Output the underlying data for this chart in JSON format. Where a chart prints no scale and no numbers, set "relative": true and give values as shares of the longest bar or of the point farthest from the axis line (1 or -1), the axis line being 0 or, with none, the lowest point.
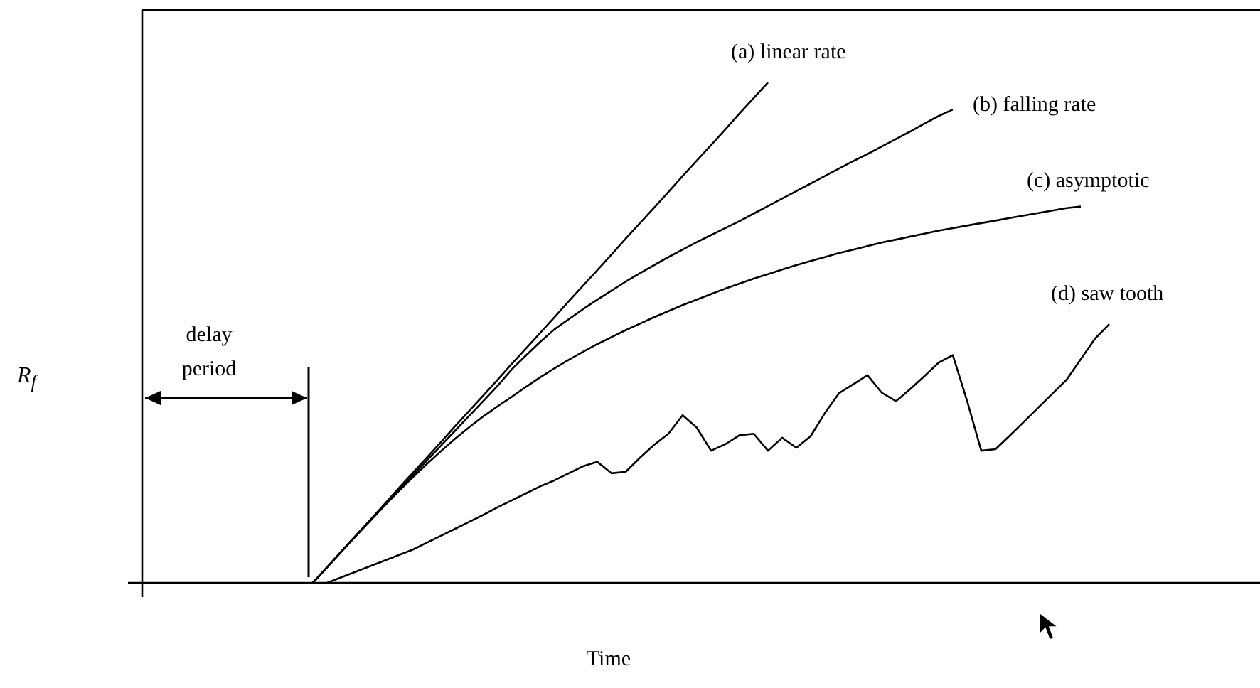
{
  "chart_data": {
    "type": "line",
    "relative": true,
    "xlabel": "Time",
    "ylabel": "R$_{f}$",
    "legend": false,
    "marker": "none",
    "line_style": "solid",
    "annotations": [
      "delay period"
    ],
    "categories": [
      null,
      null,
      null,
      null,
      null,
      null,
      null,
      null,
      null,
      null,
      null,
      null,
      null,
      null,
      null,
      null,
      null,
      null,
      null,
      null,
      null,
      null,
      null,
      null,
      null,
      null,
      null,
      null,
      null,
      null,
      null,
      null,
      null,
      null,
      null,
      null,
      null,
      null,
      null,
      null,
      null,
      null,
      null,
      null,
      null,
      null,
      null,
      null,
      null,
      null,
      null,
      null,
      null,
      null,
      null,
      null,
      null,
      null,
      null,
      null,
      null,
      null,
      null,
      null,
      null,
      null,
      null,
      null,
      null,
      null,
      null,
      null,
      null,
      null,
      null,
      null,
      null,
      null,
      null
    ],
    "series": [
      {
        "name": "(a) linear rate",
        "color": "#000000",
        "values": [
          null,
          null,
          null,
          null,
          null,
          null,
          null,
          null,
          null,
          null,
          null,
          null,
          0,
          0.031,
          0.063,
          0.094,
          0.125,
          0.156,
          0.188,
          0.219,
          0.25,
          0.281,
          0.313,
          0.344,
          0.375,
          0.406,
          0.438,
          0.469,
          0.5,
          0.531,
          0.563,
          0.594,
          0.625,
          0.656,
          0.688,
          0.719,
          0.75,
          0.781,
          0.813,
          0.844,
          0.875,
          0.906,
          0.938,
          0.969,
          1,
          null,
          null,
          null,
          null,
          null,
          null,
          null,
          null,
          null,
          null,
          null,
          null,
          null,
          null,
          null,
          null,
          null,
          null,
          null,
          null,
          null,
          null,
          null,
          null,
          null,
          null,
          null,
          null,
          null,
          null,
          null,
          null,
          null,
          null
        ]
      },
      {
        "name": "(b) falling rate",
        "color": "#000000",
        "values": [
          null,
          null,
          null,
          null,
          null,
          null,
          null,
          null,
          null,
          null,
          null,
          null,
          0,
          0.031,
          0.062,
          0.093,
          0.123,
          0.154,
          0.184,
          0.214,
          0.244,
          0.274,
          0.304,
          0.334,
          0.364,
          0.394,
          0.427,
          0.455,
          0.482,
          0.507,
          0.527,
          0.547,
          0.566,
          0.584,
          0.602,
          0.619,
          0.635,
          0.651,
          0.666,
          0.681,
          0.695,
          0.709,
          0.723,
          0.738,
          0.753,
          0.768,
          0.783,
          0.798,
          0.813,
          0.828,
          0.843,
          0.857,
          0.872,
          0.887,
          0.902,
          0.918,
          0.933,
          0.946,
          null,
          null,
          null,
          null,
          null,
          null,
          null,
          null,
          null,
          null,
          null,
          null,
          null,
          null,
          null,
          null,
          null,
          null,
          null,
          null,
          null
        ]
      },
      {
        "name": "(c) asymptotic",
        "color": "#000000",
        "values": [
          null,
          null,
          null,
          null,
          null,
          null,
          null,
          null,
          null,
          null,
          null,
          null,
          0,
          0.031,
          0.062,
          0.093,
          0.123,
          0.153,
          0.182,
          0.21,
          0.237,
          0.263,
          0.288,
          0.311,
          0.333,
          0.353,
          0.372,
          0.392,
          0.411,
          0.429,
          0.446,
          0.462,
          0.477,
          0.491,
          0.505,
          0.518,
          0.531,
          0.543,
          0.555,
          0.566,
          0.577,
          0.588,
          0.598,
          0.608,
          0.617,
          0.626,
          0.635,
          0.643,
          0.651,
          0.659,
          0.666,
          0.673,
          0.68,
          0.686,
          0.692,
          0.698,
          0.704,
          0.709,
          0.714,
          0.719,
          0.724,
          0.729,
          0.734,
          0.739,
          0.744,
          0.749,
          0.752,
          null,
          null,
          null,
          null,
          null,
          null,
          null,
          null,
          null,
          null,
          null,
          null
        ]
      },
      {
        "name": "(d) saw tooth",
        "color": "#000000",
        "values": [
          null,
          null,
          null,
          null,
          null,
          null,
          null,
          null,
          null,
          null,
          null,
          null,
          null,
          0,
          0.011,
          0.022,
          0.033,
          0.044,
          0.055,
          0.066,
          0.08,
          0.094,
          0.108,
          0.122,
          0.136,
          0.151,
          0.165,
          0.179,
          0.193,
          0.205,
          0.219,
          0.233,
          0.242,
          0.219,
          0.222,
          0.25,
          0.276,
          0.298,
          0.335,
          0.31,
          0.264,
          0.277,
          0.295,
          0.298,
          0.264,
          0.29,
          0.27,
          0.293,
          0.339,
          0.379,
          0.397,
          0.415,
          0.38,
          0.363,
          0.387,
          0.413,
          0.44,
          0.455,
          0.364,
          0.264,
          0.267,
          0.294,
          0.322,
          0.35,
          0.378,
          0.406,
          0.447,
          0.488,
          0.517,
          null,
          null,
          null,
          null,
          null,
          null,
          null,
          null,
          null,
          null
        ]
      }
    ]
  }
}
